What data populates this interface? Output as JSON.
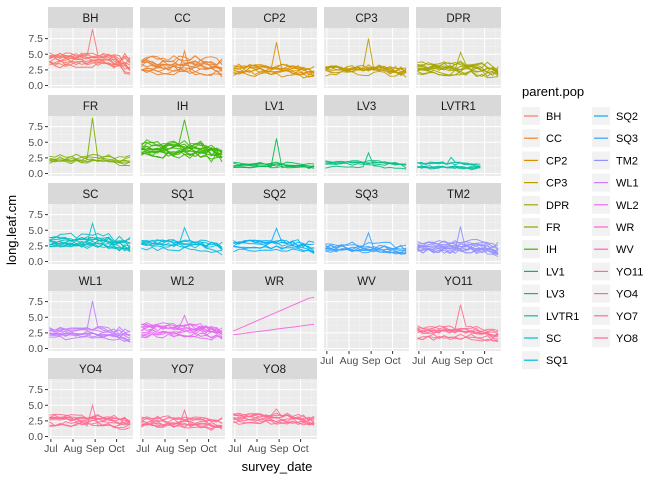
{
  "chart_data": {
    "type": "line",
    "title": "",
    "xlabel": "survey_date",
    "ylabel": "long.leaf.cm",
    "x_ticks": [
      "Jul",
      "Aug",
      "Sep",
      "Oct"
    ],
    "y_ticks": [
      0.0,
      2.5,
      5.0,
      7.5
    ],
    "y_tick_labels": [
      "0.0",
      "2.5",
      "5.0",
      "7.5"
    ],
    "xlim": [
      "2022-06-27",
      "2022-10-24"
    ],
    "ylim": [
      -0.4,
      9.2
    ],
    "grid": true,
    "legend": {
      "title": "parent.pop",
      "position": "right",
      "entries": [
        "BH",
        "CC",
        "CP2",
        "CP3",
        "DPR",
        "FR",
        "IH",
        "LV1",
        "LV3",
        "LVTR1",
        "SC",
        "SQ1",
        "SQ2",
        "SQ3",
        "TM2",
        "WL1",
        "WL2",
        "WR",
        "WV",
        "YO11",
        "YO4",
        "YO7",
        "YO8"
      ]
    },
    "series": [
      {
        "name": "BH",
        "color": "#F8766D",
        "lines": 12,
        "base": 4.2,
        "spread": 1.5,
        "max": 9.0,
        "end": "Oct"
      },
      {
        "name": "CC",
        "color": "#EA8331",
        "lines": 12,
        "base": 3.3,
        "spread": 1.5,
        "max": 5.5,
        "end": "Oct"
      },
      {
        "name": "CP2",
        "color": "#D89000",
        "lines": 10,
        "base": 2.2,
        "spread": 1.2,
        "max": 6.9,
        "end": "Oct"
      },
      {
        "name": "CP3",
        "color": "#C09B00",
        "lines": 10,
        "base": 2.5,
        "spread": 1.2,
        "max": 7.5,
        "end": "Oct"
      },
      {
        "name": "DPR",
        "color": "#A3A500",
        "lines": 12,
        "base": 2.6,
        "spread": 1.3,
        "max": 5.3,
        "end": "Oct"
      },
      {
        "name": "FR",
        "color": "#7CAE00",
        "lines": 6,
        "base": 2.2,
        "spread": 0.8,
        "max": 8.9,
        "end": "Oct"
      },
      {
        "name": "IH",
        "color": "#39B600",
        "lines": 14,
        "base": 3.8,
        "spread": 1.6,
        "max": 8.6,
        "end": "Oct"
      },
      {
        "name": "LV1",
        "color": "#00BB4E",
        "lines": 6,
        "base": 1.5,
        "spread": 0.6,
        "max": 5.6,
        "end": "Oct"
      },
      {
        "name": "LV3",
        "color": "#00BF7D",
        "lines": 5,
        "base": 1.5,
        "spread": 0.6,
        "max": 3.3,
        "end": "Oct"
      },
      {
        "name": "LVTR1",
        "color": "#00C1A3",
        "lines": 7,
        "base": 1.3,
        "spread": 0.6,
        "max": 2.6,
        "end": "Sep"
      },
      {
        "name": "SC",
        "color": "#00BFC4",
        "lines": 12,
        "base": 3.4,
        "spread": 1.2,
        "max": 6.1,
        "end": "Oct"
      },
      {
        "name": "SQ1",
        "color": "#00BAE0",
        "lines": 8,
        "base": 2.4,
        "spread": 1.0,
        "max": 5.4,
        "end": "Oct"
      },
      {
        "name": "SQ2",
        "color": "#00B0F6",
        "lines": 8,
        "base": 2.5,
        "spread": 1.0,
        "max": 5.3,
        "end": "Oct"
      },
      {
        "name": "SQ3",
        "color": "#35A2FF",
        "lines": 8,
        "base": 2.2,
        "spread": 1.0,
        "max": 4.6,
        "end": "Oct"
      },
      {
        "name": "TM2",
        "color": "#9590FF",
        "lines": 12,
        "base": 2.6,
        "spread": 1.3,
        "max": 5.6,
        "end": "Oct"
      },
      {
        "name": "WL1",
        "color": "#C77CFF",
        "lines": 10,
        "base": 2.5,
        "spread": 1.0,
        "max": 7.6,
        "end": "Oct"
      },
      {
        "name": "WL2",
        "color": "#E76BF3",
        "lines": 12,
        "base": 3.0,
        "spread": 1.3,
        "max": 5.3,
        "end": "Oct"
      },
      {
        "name": "WR",
        "color": "#FA62DB",
        "lines": 2,
        "base": 2.8,
        "spread": 0.4,
        "max": 8.2,
        "end": "Oct"
      },
      {
        "name": "WV",
        "color": "#FF62BC",
        "lines": 0,
        "base": 0,
        "spread": 0,
        "max": 0,
        "end": "Oct"
      },
      {
        "name": "YO11",
        "color": "#FF6C91",
        "lines": 10,
        "base": 2.5,
        "spread": 1.1,
        "max": 7.0,
        "end": "Oct"
      },
      {
        "name": "YO4",
        "color": "#FF6C91",
        "lines": 10,
        "base": 2.5,
        "spread": 1.0,
        "max": 5.0,
        "end": "Oct"
      },
      {
        "name": "YO7",
        "color": "#FF6C91",
        "lines": 10,
        "base": 2.3,
        "spread": 1.0,
        "max": 4.2,
        "end": "Oct"
      },
      {
        "name": "YO8",
        "color": "#FF6C91",
        "lines": 10,
        "base": 2.9,
        "spread": 1.0,
        "max": 4.4,
        "end": "Oct"
      }
    ]
  }
}
